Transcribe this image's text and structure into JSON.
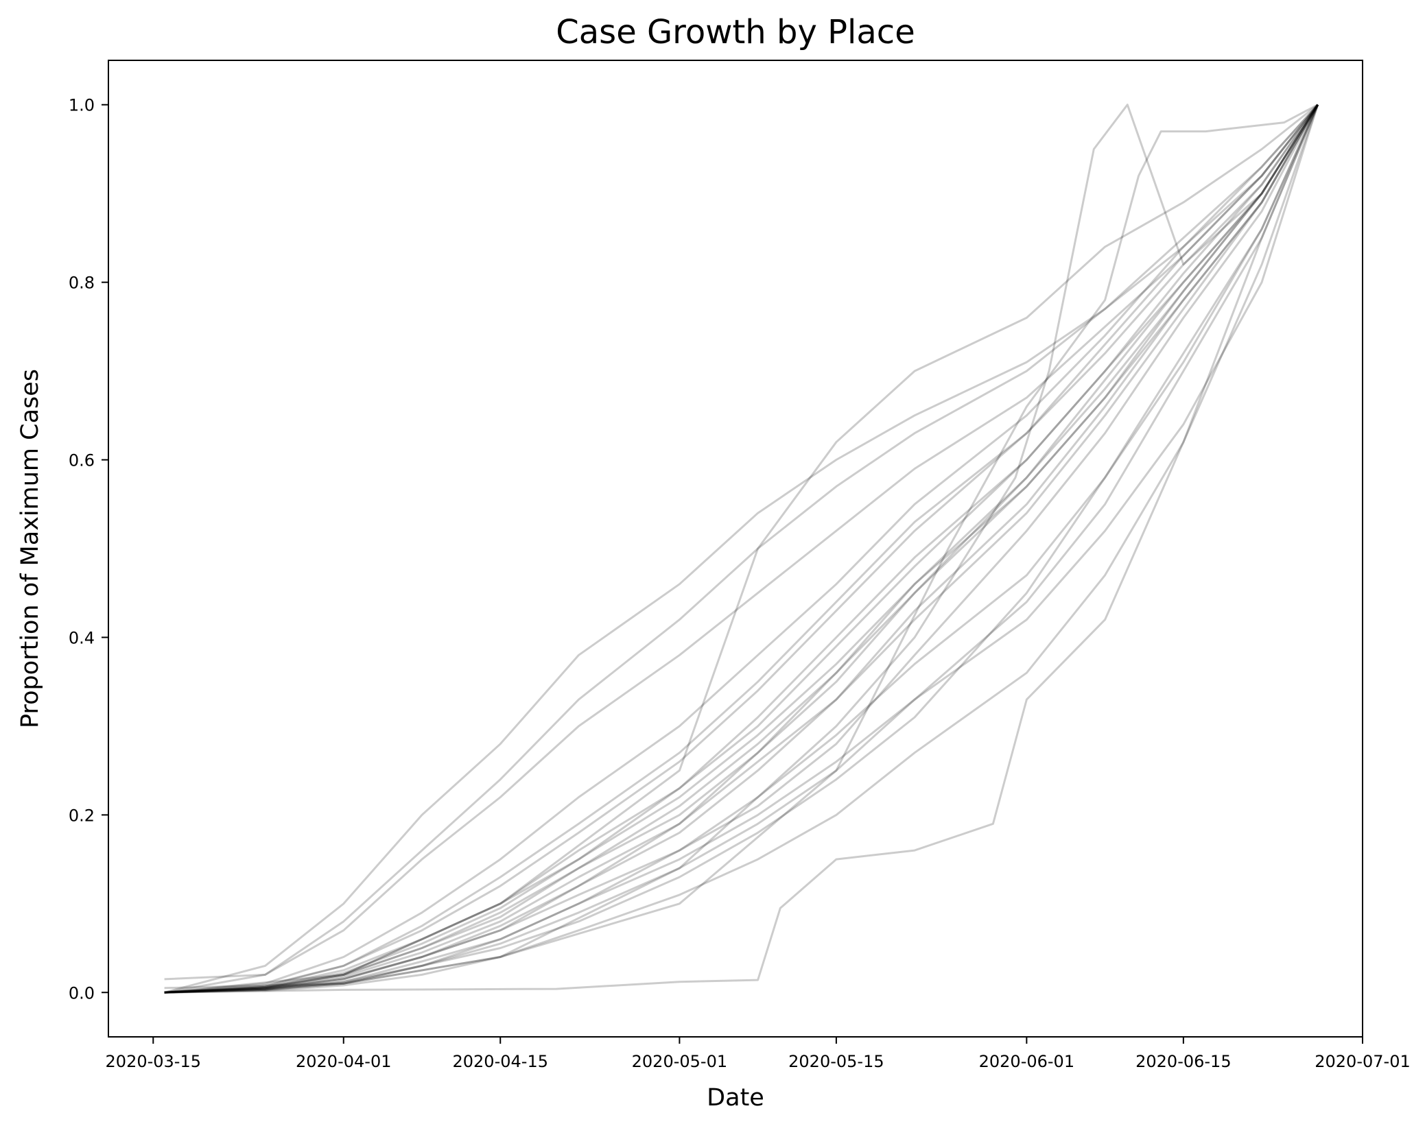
{
  "chart_data": {
    "type": "line",
    "title": "Case Growth by Place",
    "xlabel": "Date",
    "ylabel": "Proportion of Maximum Cases",
    "x_axis": {
      "kind": "date",
      "range": [
        "2020-03-11",
        "2020-07-01"
      ],
      "ticks": [
        "2020-03-15",
        "2020-04-01",
        "2020-04-15",
        "2020-05-01",
        "2020-05-15",
        "2020-06-01",
        "2020-06-15",
        "2020-07-01"
      ]
    },
    "y_axis": {
      "range": [
        -0.05,
        1.05
      ],
      "ticks": [
        "0.0",
        "0.2",
        "0.4",
        "0.6",
        "0.8",
        "1.0"
      ]
    },
    "grid": false,
    "legend": "none",
    "line_color": "#000000",
    "line_opacity": 0.2,
    "series_count_estimate": 150,
    "series": [
      {
        "x": [
          "2020-03-16",
          "2020-03-25",
          "2020-04-01",
          "2020-04-08",
          "2020-04-15",
          "2020-04-22",
          "2020-05-01",
          "2020-05-08",
          "2020-05-15",
          "2020-05-22",
          "2020-06-01",
          "2020-06-08",
          "2020-06-15",
          "2020-06-22",
          "2020-06-27"
        ],
        "y": [
          0.0,
          0.003,
          0.01,
          0.03,
          0.05,
          0.08,
          0.13,
          0.18,
          0.24,
          0.31,
          0.45,
          0.58,
          0.72,
          0.86,
          1.0
        ]
      },
      {
        "x": [
          "2020-03-16",
          "2020-03-25",
          "2020-04-01",
          "2020-04-08",
          "2020-04-15",
          "2020-04-22",
          "2020-05-01",
          "2020-05-08",
          "2020-05-15",
          "2020-05-22",
          "2020-06-01",
          "2020-06-08",
          "2020-06-15",
          "2020-06-22",
          "2020-06-27"
        ],
        "y": [
          0.0,
          0.004,
          0.015,
          0.04,
          0.07,
          0.11,
          0.16,
          0.21,
          0.28,
          0.38,
          0.52,
          0.63,
          0.76,
          0.88,
          1.0
        ]
      },
      {
        "x": [
          "2020-03-16",
          "2020-03-25",
          "2020-04-01",
          "2020-04-08",
          "2020-04-15",
          "2020-04-22",
          "2020-05-01",
          "2020-05-08",
          "2020-05-15",
          "2020-05-22",
          "2020-06-01",
          "2020-06-08",
          "2020-06-15",
          "2020-06-22",
          "2020-06-27"
        ],
        "y": [
          0.0,
          0.006,
          0.02,
          0.05,
          0.09,
          0.14,
          0.2,
          0.27,
          0.35,
          0.45,
          0.58,
          0.68,
          0.79,
          0.9,
          1.0
        ]
      },
      {
        "x": [
          "2020-03-16",
          "2020-03-25",
          "2020-04-01",
          "2020-04-08",
          "2020-04-15",
          "2020-04-22",
          "2020-05-01",
          "2020-05-08",
          "2020-05-15",
          "2020-05-22",
          "2020-06-01",
          "2020-06-08",
          "2020-06-15",
          "2020-06-22",
          "2020-06-27"
        ],
        "y": [
          0.0,
          0.005,
          0.02,
          0.06,
          0.1,
          0.16,
          0.23,
          0.3,
          0.39,
          0.48,
          0.6,
          0.7,
          0.81,
          0.91,
          1.0
        ]
      },
      {
        "x": [
          "2020-03-16",
          "2020-03-25",
          "2020-04-01",
          "2020-04-08",
          "2020-04-15",
          "2020-04-22",
          "2020-05-01",
          "2020-05-08",
          "2020-05-15",
          "2020-05-22",
          "2020-06-01",
          "2020-06-08",
          "2020-06-15",
          "2020-06-22",
          "2020-06-27"
        ],
        "y": [
          0.0,
          0.007,
          0.03,
          0.07,
          0.12,
          0.18,
          0.26,
          0.34,
          0.43,
          0.52,
          0.63,
          0.73,
          0.83,
          0.92,
          1.0
        ]
      },
      {
        "x": [
          "2020-03-16",
          "2020-03-25",
          "2020-04-01",
          "2020-04-08",
          "2020-04-15",
          "2020-04-22",
          "2020-05-01",
          "2020-05-08",
          "2020-05-15",
          "2020-05-22",
          "2020-06-01",
          "2020-06-08",
          "2020-06-15",
          "2020-06-22",
          "2020-06-27"
        ],
        "y": [
          0.0,
          0.01,
          0.04,
          0.09,
          0.15,
          0.22,
          0.3,
          0.38,
          0.46,
          0.55,
          0.65,
          0.74,
          0.84,
          0.93,
          1.0
        ]
      },
      {
        "x": [
          "2020-03-16",
          "2020-03-25",
          "2020-04-01",
          "2020-04-08",
          "2020-04-15",
          "2020-04-22",
          "2020-05-01",
          "2020-05-08",
          "2020-05-15",
          "2020-05-22",
          "2020-06-01",
          "2020-06-08",
          "2020-06-15",
          "2020-06-22",
          "2020-06-27"
        ],
        "y": [
          0.0,
          0.02,
          0.07,
          0.15,
          0.22,
          0.3,
          0.38,
          0.45,
          0.52,
          0.59,
          0.67,
          0.75,
          0.83,
          0.92,
          1.0
        ]
      },
      {
        "x": [
          "2020-03-16",
          "2020-03-25",
          "2020-04-01",
          "2020-04-08",
          "2020-04-15",
          "2020-04-22",
          "2020-05-01",
          "2020-05-08",
          "2020-05-15",
          "2020-05-22",
          "2020-06-01",
          "2020-06-08",
          "2020-06-15",
          "2020-06-22",
          "2020-06-27"
        ],
        "y": [
          0.0,
          0.03,
          0.1,
          0.2,
          0.28,
          0.38,
          0.46,
          0.54,
          0.6,
          0.65,
          0.71,
          0.77,
          0.84,
          0.92,
          1.0
        ]
      },
      {
        "x": [
          "2020-03-16",
          "2020-03-25",
          "2020-04-01",
          "2020-04-08",
          "2020-04-15",
          "2020-04-22",
          "2020-05-01",
          "2020-05-08",
          "2020-05-15",
          "2020-05-22",
          "2020-06-01",
          "2020-06-08",
          "2020-06-15",
          "2020-06-22",
          "2020-06-27"
        ],
        "y": [
          0.015,
          0.02,
          0.08,
          0.16,
          0.24,
          0.33,
          0.42,
          0.5,
          0.57,
          0.63,
          0.7,
          0.77,
          0.85,
          0.93,
          1.0
        ]
      },
      {
        "x": [
          "2020-03-16",
          "2020-03-25",
          "2020-04-01",
          "2020-04-08",
          "2020-04-15",
          "2020-04-22",
          "2020-05-01",
          "2020-05-08",
          "2020-05-15",
          "2020-05-22",
          "2020-06-01",
          "2020-06-08",
          "2020-06-15",
          "2020-06-22",
          "2020-06-27"
        ],
        "y": [
          0.0,
          0.004,
          0.012,
          0.035,
          0.06,
          0.1,
          0.15,
          0.2,
          0.26,
          0.33,
          0.42,
          0.52,
          0.64,
          0.8,
          1.0
        ]
      },
      {
        "x": [
          "2020-03-16",
          "2020-03-25",
          "2020-04-01",
          "2020-04-08",
          "2020-04-15",
          "2020-04-22",
          "2020-05-01",
          "2020-05-08",
          "2020-05-15",
          "2020-05-22",
          "2020-06-01",
          "2020-06-08",
          "2020-06-15",
          "2020-06-22",
          "2020-06-27"
        ],
        "y": [
          0.0,
          0.005,
          0.018,
          0.045,
          0.08,
          0.13,
          0.19,
          0.26,
          0.33,
          0.42,
          0.54,
          0.65,
          0.77,
          0.89,
          1.0
        ]
      },
      {
        "x": [
          "2020-03-16",
          "2020-03-25",
          "2020-04-01",
          "2020-04-08",
          "2020-04-15",
          "2020-04-22",
          "2020-05-01",
          "2020-05-08",
          "2020-05-15",
          "2020-05-22",
          "2020-06-01",
          "2020-06-08",
          "2020-06-15",
          "2020-06-22",
          "2020-06-27"
        ],
        "y": [
          0.0,
          0.006,
          0.025,
          0.06,
          0.1,
          0.15,
          0.22,
          0.29,
          0.37,
          0.46,
          0.57,
          0.67,
          0.78,
          0.89,
          1.0
        ]
      },
      {
        "x": [
          "2020-03-16",
          "2020-03-25",
          "2020-04-01",
          "2020-04-08",
          "2020-04-15",
          "2020-04-22",
          "2020-05-01",
          "2020-05-08",
          "2020-05-15",
          "2020-05-22",
          "2020-06-01",
          "2020-06-08",
          "2020-06-15",
          "2020-06-22",
          "2020-06-27"
        ],
        "y": [
          0.0,
          0.008,
          0.03,
          0.075,
          0.13,
          0.19,
          0.27,
          0.35,
          0.44,
          0.53,
          0.63,
          0.72,
          0.82,
          0.91,
          1.0
        ]
      },
      {
        "x": [
          "2020-03-16",
          "2020-03-25",
          "2020-04-01",
          "2020-04-08",
          "2020-04-15",
          "2020-04-22",
          "2020-05-01",
          "2020-05-08",
          "2020-05-15",
          "2020-05-22",
          "2020-06-01",
          "2020-06-08",
          "2020-06-15",
          "2020-06-22",
          "2020-06-27"
        ],
        "y": [
          0.0,
          0.003,
          0.01,
          0.03,
          0.055,
          0.09,
          0.14,
          0.19,
          0.25,
          0.33,
          0.44,
          0.55,
          0.7,
          0.85,
          1.0
        ]
      },
      {
        "x": [
          "2020-03-16",
          "2020-03-25",
          "2020-04-01",
          "2020-04-08",
          "2020-04-15",
          "2020-04-22",
          "2020-05-01",
          "2020-05-08",
          "2020-05-15",
          "2020-05-22",
          "2020-06-01",
          "2020-06-08",
          "2020-06-15",
          "2020-06-22",
          "2020-06-27"
        ],
        "y": [
          0.0,
          0.002,
          0.008,
          0.02,
          0.04,
          0.07,
          0.11,
          0.15,
          0.2,
          0.27,
          0.36,
          0.47,
          0.62,
          0.82,
          1.0
        ]
      },
      {
        "x": [
          "2020-03-16",
          "2020-03-25",
          "2020-04-01",
          "2020-04-08",
          "2020-04-15",
          "2020-04-22",
          "2020-05-01",
          "2020-05-08",
          "2020-05-15",
          "2020-05-22",
          "2020-06-01",
          "2020-06-08",
          "2020-06-15",
          "2020-06-22",
          "2020-06-27"
        ],
        "y": [
          0.0,
          0.004,
          0.015,
          0.04,
          0.07,
          0.12,
          0.18,
          0.25,
          0.33,
          0.43,
          0.55,
          0.66,
          0.78,
          0.89,
          1.0
        ]
      },
      {
        "x": [
          "2020-03-16",
          "2020-03-25",
          "2020-04-01",
          "2020-04-08",
          "2020-04-15",
          "2020-04-22",
          "2020-05-01",
          "2020-05-08",
          "2020-05-15",
          "2020-05-22",
          "2020-06-01",
          "2020-06-08",
          "2020-06-15",
          "2020-06-22",
          "2020-06-27"
        ],
        "y": [
          0.0,
          0.005,
          0.02,
          0.05,
          0.085,
          0.14,
          0.21,
          0.28,
          0.36,
          0.45,
          0.57,
          0.67,
          0.79,
          0.9,
          1.0
        ]
      },
      {
        "x": [
          "2020-03-16",
          "2020-03-25",
          "2020-04-01",
          "2020-04-08",
          "2020-04-15",
          "2020-04-22",
          "2020-05-01",
          "2020-05-08",
          "2020-05-15",
          "2020-05-22",
          "2020-06-01",
          "2020-06-08",
          "2020-06-15",
          "2020-06-22",
          "2020-06-27"
        ],
        "y": [
          0.0,
          0.006,
          0.022,
          0.055,
          0.095,
          0.15,
          0.23,
          0.31,
          0.4,
          0.49,
          0.6,
          0.7,
          0.8,
          0.9,
          1.0
        ]
      },
      {
        "x": [
          "2020-03-16",
          "2020-03-25",
          "2020-04-01",
          "2020-04-08",
          "2020-04-15",
          "2020-04-22",
          "2020-05-01",
          "2020-05-08",
          "2020-05-15",
          "2020-05-22",
          "2020-06-01",
          "2020-06-08",
          "2020-06-15",
          "2020-06-22",
          "2020-06-27"
        ],
        "y": [
          0.0,
          0.003,
          0.012,
          0.03,
          0.06,
          0.1,
          0.16,
          0.22,
          0.29,
          0.37,
          0.47,
          0.58,
          0.71,
          0.86,
          1.0
        ]
      },
      {
        "x": [
          "2020-03-16",
          "2020-03-25",
          "2020-04-01",
          "2020-04-08",
          "2020-04-15",
          "2020-04-22",
          "2020-05-01",
          "2020-05-08",
          "2020-05-15",
          "2020-05-22",
          "2020-06-01",
          "2020-06-08",
          "2020-06-15",
          "2020-06-22",
          "2020-06-27"
        ],
        "y": [
          0.0,
          0.004,
          0.016,
          0.04,
          0.075,
          0.12,
          0.19,
          0.27,
          0.36,
          0.46,
          0.58,
          0.69,
          0.8,
          0.9,
          1.0
        ]
      },
      {
        "x": [
          "2020-03-16",
          "2020-04-01",
          "2020-04-20",
          "2020-05-01",
          "2020-05-08",
          "2020-05-10",
          "2020-05-15",
          "2020-05-22",
          "2020-05-29",
          "2020-06-01",
          "2020-06-08",
          "2020-06-15",
          "2020-06-22",
          "2020-06-27"
        ],
        "y": [
          0.0,
          0.003,
          0.004,
          0.012,
          0.014,
          0.095,
          0.15,
          0.16,
          0.19,
          0.33,
          0.42,
          0.62,
          0.85,
          1.0
        ]
      },
      {
        "x": [
          "2020-03-16",
          "2020-04-01",
          "2020-04-15",
          "2020-05-01",
          "2020-05-15",
          "2020-05-22",
          "2020-05-31",
          "2020-06-03",
          "2020-06-07",
          "2020-06-10",
          "2020-06-15",
          "2020-06-22",
          "2020-06-27"
        ],
        "y": [
          0.005,
          0.01,
          0.04,
          0.14,
          0.3,
          0.4,
          0.58,
          0.7,
          0.95,
          1.0,
          0.82,
          0.9,
          1.0
        ]
      },
      {
        "x": [
          "2020-03-16",
          "2020-04-01",
          "2020-04-15",
          "2020-05-01",
          "2020-05-15",
          "2020-05-25",
          "2020-06-01",
          "2020-06-08",
          "2020-06-11",
          "2020-06-13",
          "2020-06-17",
          "2020-06-24",
          "2020-06-27"
        ],
        "y": [
          0.0,
          0.01,
          0.04,
          0.1,
          0.25,
          0.5,
          0.66,
          0.78,
          0.92,
          0.97,
          0.97,
          0.98,
          1.0
        ]
      },
      {
        "x": [
          "2020-03-16",
          "2020-04-01",
          "2020-04-15",
          "2020-05-01",
          "2020-05-08",
          "2020-05-15",
          "2020-05-22",
          "2020-06-01",
          "2020-06-08",
          "2020-06-15",
          "2020-06-22",
          "2020-06-27"
        ],
        "y": [
          0.0,
          0.02,
          0.1,
          0.25,
          0.5,
          0.62,
          0.7,
          0.76,
          0.84,
          0.89,
          0.95,
          1.0
        ]
      }
    ]
  }
}
